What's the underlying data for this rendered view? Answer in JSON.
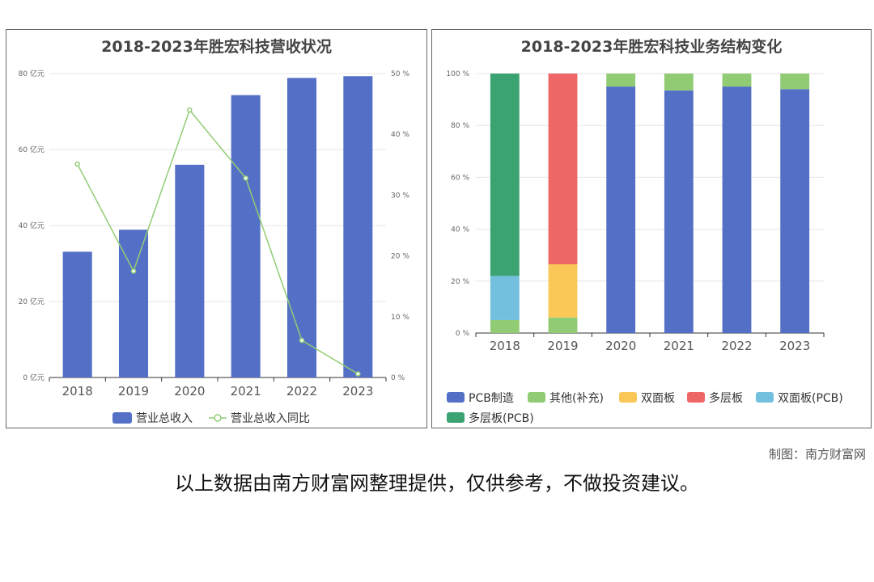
{
  "footer": {
    "credit": "制图：南方财富网",
    "disclaimer": "以上数据由南方财富网整理提供，仅供参考，不做投资建议。"
  },
  "chart_data": [
    {
      "type": "bar",
      "title": "2018-2023年胜宏科技营收状况",
      "categories": [
        "2018",
        "2019",
        "2020",
        "2021",
        "2022",
        "2023"
      ],
      "y_left": {
        "ticks": [
          "0 亿元",
          "20 亿元",
          "40 亿元",
          "60 亿元",
          "80 亿元"
        ],
        "ylim": [
          0,
          80
        ]
      },
      "y_right": {
        "ticks": [
          "0 %",
          "10 %",
          "20 %",
          "30 %",
          "40 %",
          "50 %"
        ],
        "ylim": [
          0,
          50
        ]
      },
      "series": [
        {
          "name": "营业总收入",
          "type": "bar",
          "axis": "left",
          "color": "#5470c6",
          "values": [
            33.1,
            38.9,
            55.99,
            74.32,
            78.85,
            79.31
          ]
        },
        {
          "name": "营业总收入同比",
          "type": "line",
          "axis": "right",
          "color": "#91cc75",
          "values": [
            35.1,
            17.5,
            44.0,
            32.8,
            6.1,
            0.6
          ]
        }
      ],
      "legend": "bottom",
      "grid": true
    },
    {
      "type": "bar",
      "stacked": true,
      "title": "2018-2023年胜宏科技业务结构变化",
      "categories": [
        "2018",
        "2019",
        "2020",
        "2021",
        "2022",
        "2023"
      ],
      "y": {
        "ticks": [
          "0 %",
          "20 %",
          "40 %",
          "60 %",
          "80 %",
          "100 %"
        ],
        "ylim": [
          0,
          100
        ]
      },
      "series": [
        {
          "name": "PCB制造",
          "color": "#5470c6",
          "values": [
            0,
            0,
            95,
            93.5,
            95,
            94
          ]
        },
        {
          "name": "其他(补充)",
          "color": "#91cc75",
          "values": [
            5,
            6,
            5,
            6.5,
            5,
            6
          ]
        },
        {
          "name": "双面板",
          "color": "#fac858",
          "values": [
            0,
            20.5,
            0,
            0,
            0,
            0
          ]
        },
        {
          "name": "多层板",
          "color": "#ee6666",
          "values": [
            0,
            73.5,
            0,
            0,
            0,
            0
          ]
        },
        {
          "name": "双面板(PCB)",
          "color": "#73c0de",
          "values": [
            17,
            0,
            0,
            0,
            0,
            0
          ]
        },
        {
          "name": "多层板(PCB)",
          "color": "#3ba272",
          "values": [
            78,
            0,
            0,
            0,
            0,
            0
          ]
        }
      ],
      "legend": "bottom",
      "grid": true
    }
  ]
}
